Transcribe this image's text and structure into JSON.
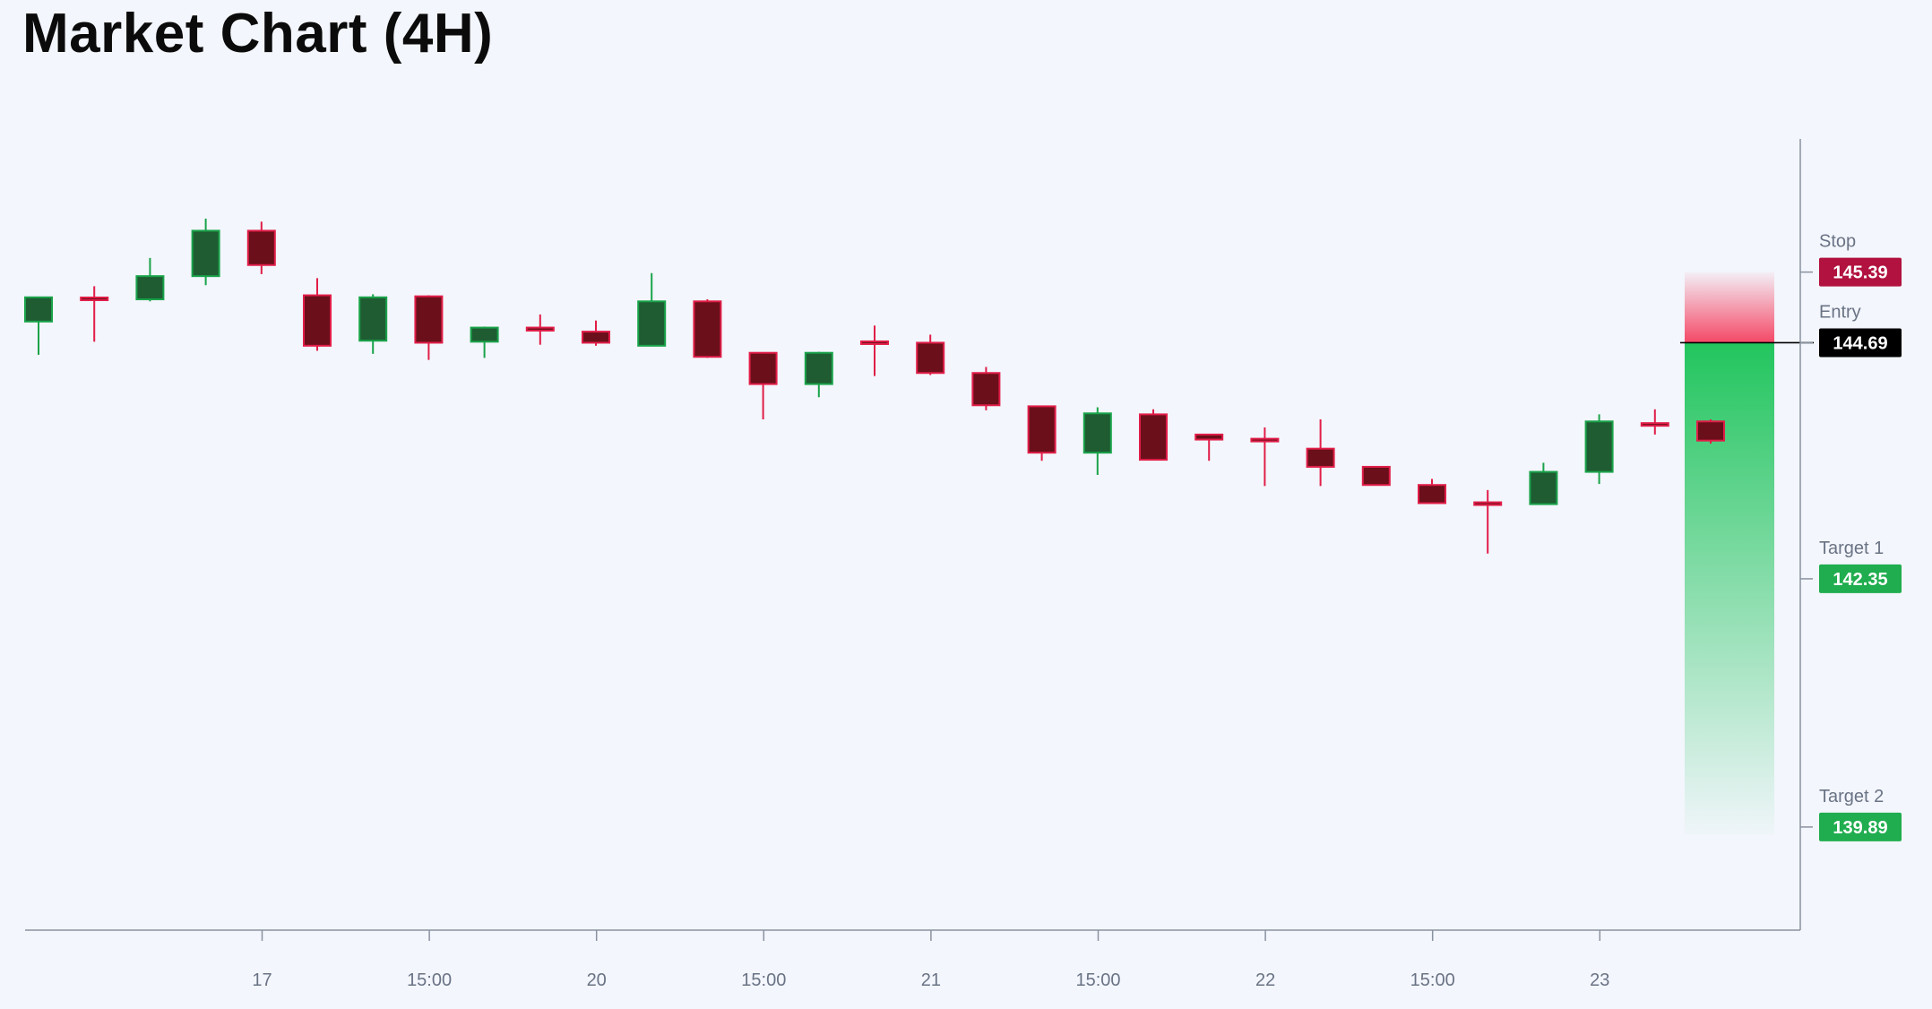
{
  "title": "Market Chart (4H)",
  "chart_data": {
    "type": "candlestick",
    "timeframe": "4H",
    "x_tick_labels": [
      "17",
      "15:00",
      "20",
      "15:00",
      "21",
      "15:00",
      "22",
      "15:00",
      "23"
    ],
    "y_range": [
      138.85,
      146.95
    ],
    "colors": {
      "up_fill": "#1f5c32",
      "up_border": "#19a34a",
      "down_fill": "#6b0f1a",
      "down_border": "#e11d48",
      "stop_zone": "#f43f5e",
      "profit_zone": "#22c55e",
      "stop_badge": "#b1123f",
      "entry_badge": "#000000",
      "target_badge": "#20ad4f",
      "axis": "#8a92a0"
    },
    "candles": [
      {
        "o": 144.9,
        "h": 145.1,
        "l": 144.57,
        "c": 145.14
      },
      {
        "o": 145.13,
        "h": 145.25,
        "l": 144.7,
        "c": 145.12
      },
      {
        "o": 145.12,
        "h": 145.53,
        "l": 145.1,
        "c": 145.35
      },
      {
        "o": 145.35,
        "h": 145.92,
        "l": 145.26,
        "c": 145.8
      },
      {
        "o": 145.8,
        "h": 145.89,
        "l": 145.37,
        "c": 145.46
      },
      {
        "o": 145.16,
        "h": 145.33,
        "l": 144.61,
        "c": 144.66
      },
      {
        "o": 144.71,
        "h": 145.17,
        "l": 144.58,
        "c": 145.14
      },
      {
        "o": 145.15,
        "h": 145.16,
        "l": 144.52,
        "c": 144.69
      },
      {
        "o": 144.7,
        "h": 144.85,
        "l": 144.54,
        "c": 144.84
      },
      {
        "o": 144.84,
        "h": 144.97,
        "l": 144.67,
        "c": 144.81
      },
      {
        "o": 144.8,
        "h": 144.91,
        "l": 144.66,
        "c": 144.69
      },
      {
        "o": 144.66,
        "h": 145.38,
        "l": 144.66,
        "c": 145.1
      },
      {
        "o": 145.1,
        "h": 145.12,
        "l": 144.54,
        "c": 144.55
      },
      {
        "o": 144.59,
        "h": 144.59,
        "l": 143.93,
        "c": 144.28
      },
      {
        "o": 144.28,
        "h": 144.6,
        "l": 144.15,
        "c": 144.59
      },
      {
        "o": 144.7,
        "h": 144.86,
        "l": 144.36,
        "c": 144.68
      },
      {
        "o": 144.69,
        "h": 144.77,
        "l": 144.37,
        "c": 144.39
      },
      {
        "o": 144.39,
        "h": 144.45,
        "l": 144.02,
        "c": 144.07
      },
      {
        "o": 144.06,
        "h": 144.06,
        "l": 143.52,
        "c": 143.6
      },
      {
        "o": 143.6,
        "h": 144.05,
        "l": 143.38,
        "c": 143.99
      },
      {
        "o": 143.98,
        "h": 144.03,
        "l": 143.55,
        "c": 143.53
      },
      {
        "o": 143.78,
        "h": 143.77,
        "l": 143.52,
        "c": 143.73
      },
      {
        "o": 143.73,
        "h": 143.85,
        "l": 143.27,
        "c": 143.72
      },
      {
        "o": 143.64,
        "h": 143.93,
        "l": 143.27,
        "c": 143.46
      },
      {
        "o": 143.46,
        "h": 143.46,
        "l": 143.29,
        "c": 143.28
      },
      {
        "o": 143.28,
        "h": 143.34,
        "l": 143.14,
        "c": 143.1
      },
      {
        "o": 143.1,
        "h": 143.23,
        "l": 142.6,
        "c": 143.09
      },
      {
        "o": 143.09,
        "h": 143.5,
        "l": 143.1,
        "c": 143.41
      },
      {
        "o": 143.41,
        "h": 143.98,
        "l": 143.29,
        "c": 143.91
      },
      {
        "o": 143.89,
        "h": 144.03,
        "l": 143.78,
        "c": 143.87
      },
      {
        "o": 143.91,
        "h": 143.93,
        "l": 143.69,
        "c": 143.72
      }
    ],
    "levels": [
      {
        "label": "Stop",
        "value": "145.39",
        "price": 145.39,
        "kind": "stop"
      },
      {
        "label": "Entry",
        "value": "144.69",
        "price": 144.69,
        "kind": "entry"
      },
      {
        "label": "Target 1",
        "value": "142.35",
        "price": 142.35,
        "kind": "target"
      },
      {
        "label": "Target 2",
        "value": "139.89",
        "price": 139.89,
        "kind": "target"
      }
    ],
    "grid": false,
    "xlabel": "",
    "ylabel": ""
  }
}
